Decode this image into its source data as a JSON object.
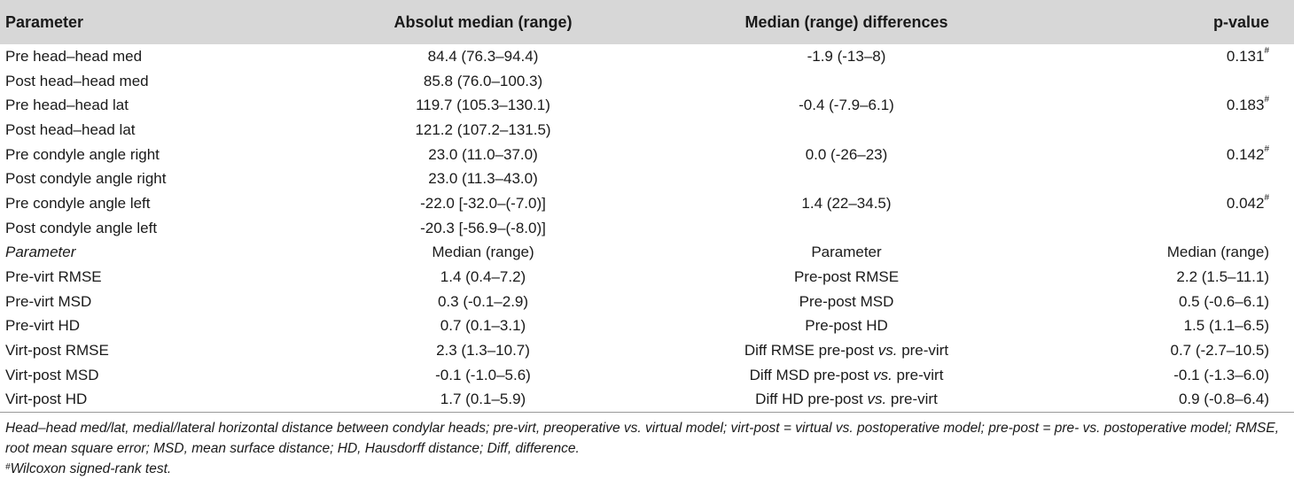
{
  "header": {
    "parameter": "Parameter",
    "absolute_median": "Absolut median (range)",
    "median_differences": "Median (range) differences",
    "p_value": "p-value"
  },
  "rows": [
    {
      "parameter": "Pre head–head med",
      "absolute": "84.4 (76.3–94.4)",
      "difference": "-1.9 (-13–8)",
      "p": "0.131",
      "mark": "#"
    },
    {
      "parameter": "Post head–head med",
      "absolute": "85.8 (76.0–100.3)",
      "difference": "",
      "p": "",
      "mark": ""
    },
    {
      "parameter": "Pre head–head lat",
      "absolute": "119.7 (105.3–130.1)",
      "difference": "-0.4 (-7.9–6.1)",
      "p": "0.183",
      "mark": "#"
    },
    {
      "parameter": "Post head–head lat",
      "absolute": "121.2 (107.2–131.5)",
      "difference": "",
      "p": "",
      "mark": ""
    },
    {
      "parameter": "Pre condyle angle right",
      "absolute": "23.0 (11.0–37.0)",
      "difference": "0.0 (-26–23)",
      "p": "0.142",
      "mark": "#"
    },
    {
      "parameter": "Post condyle angle right",
      "absolute": "23.0 (11.3–43.0)",
      "difference": "",
      "p": "",
      "mark": ""
    },
    {
      "parameter": "Pre condyle angle left",
      "absolute": "-22.0 [-32.0–(-7.0)]",
      "difference": "1.4 (22–34.5)",
      "p": "0.042",
      "mark": "#"
    },
    {
      "parameter": "Post condyle angle left",
      "absolute": "-20.3 [-56.9–(-8.0)]",
      "difference": "",
      "p": "",
      "mark": ""
    }
  ],
  "subheader": {
    "parameter_a": "Parameter",
    "median_a": "Median (range)",
    "parameter_b": "Parameter",
    "median_b": "Median (range)"
  },
  "rows2": [
    {
      "param_a": "Pre-virt RMSE",
      "median_a": "1.4 (0.4–7.2)",
      "param_b": "Pre-post RMSE",
      "median_b": "2.2 (1.5–11.1)"
    },
    {
      "param_a": "Pre-virt MSD",
      "median_a": "0.3 (-0.1–2.9)",
      "param_b": "Pre-post MSD",
      "median_b": "0.5 (-0.6–6.1)"
    },
    {
      "param_a": "Pre-virt HD",
      "median_a": "0.7 (0.1–3.1)",
      "param_b": "Pre-post HD",
      "median_b": "1.5 (1.1–6.5)"
    },
    {
      "param_a": "Virt-post RMSE",
      "median_a": "2.3 (1.3–10.7)",
      "param_b": "Diff RMSE pre-post vs. pre-virt",
      "median_b": "0.7 (-2.7–10.5)"
    },
    {
      "param_a": "Virt-post MSD",
      "median_a": "-0.1 (-1.0–5.6)",
      "param_b": "Diff MSD pre-post vs. pre-virt",
      "median_b": "-0.1 (-1.3–6.0)"
    },
    {
      "param_a": "Virt-post HD",
      "median_a": "1.7 (0.1–5.9)",
      "param_b": "Diff HD pre-post vs. pre-virt",
      "median_b": "0.9 (-0.8–6.4)"
    }
  ],
  "footnote": {
    "abbreviations": "Head–head med/lat, medial/lateral horizontal distance between condylar heads; pre-virt, preoperative vs. virtual model; virt-post = virtual vs. postoperative model; pre-post = pre- vs. postoperative model; RMSE, root mean square error; MSD, mean surface distance; HD, Hausdorff distance; Diff, difference.",
    "mark": "#",
    "test": "Wilcoxon signed-rank test."
  }
}
